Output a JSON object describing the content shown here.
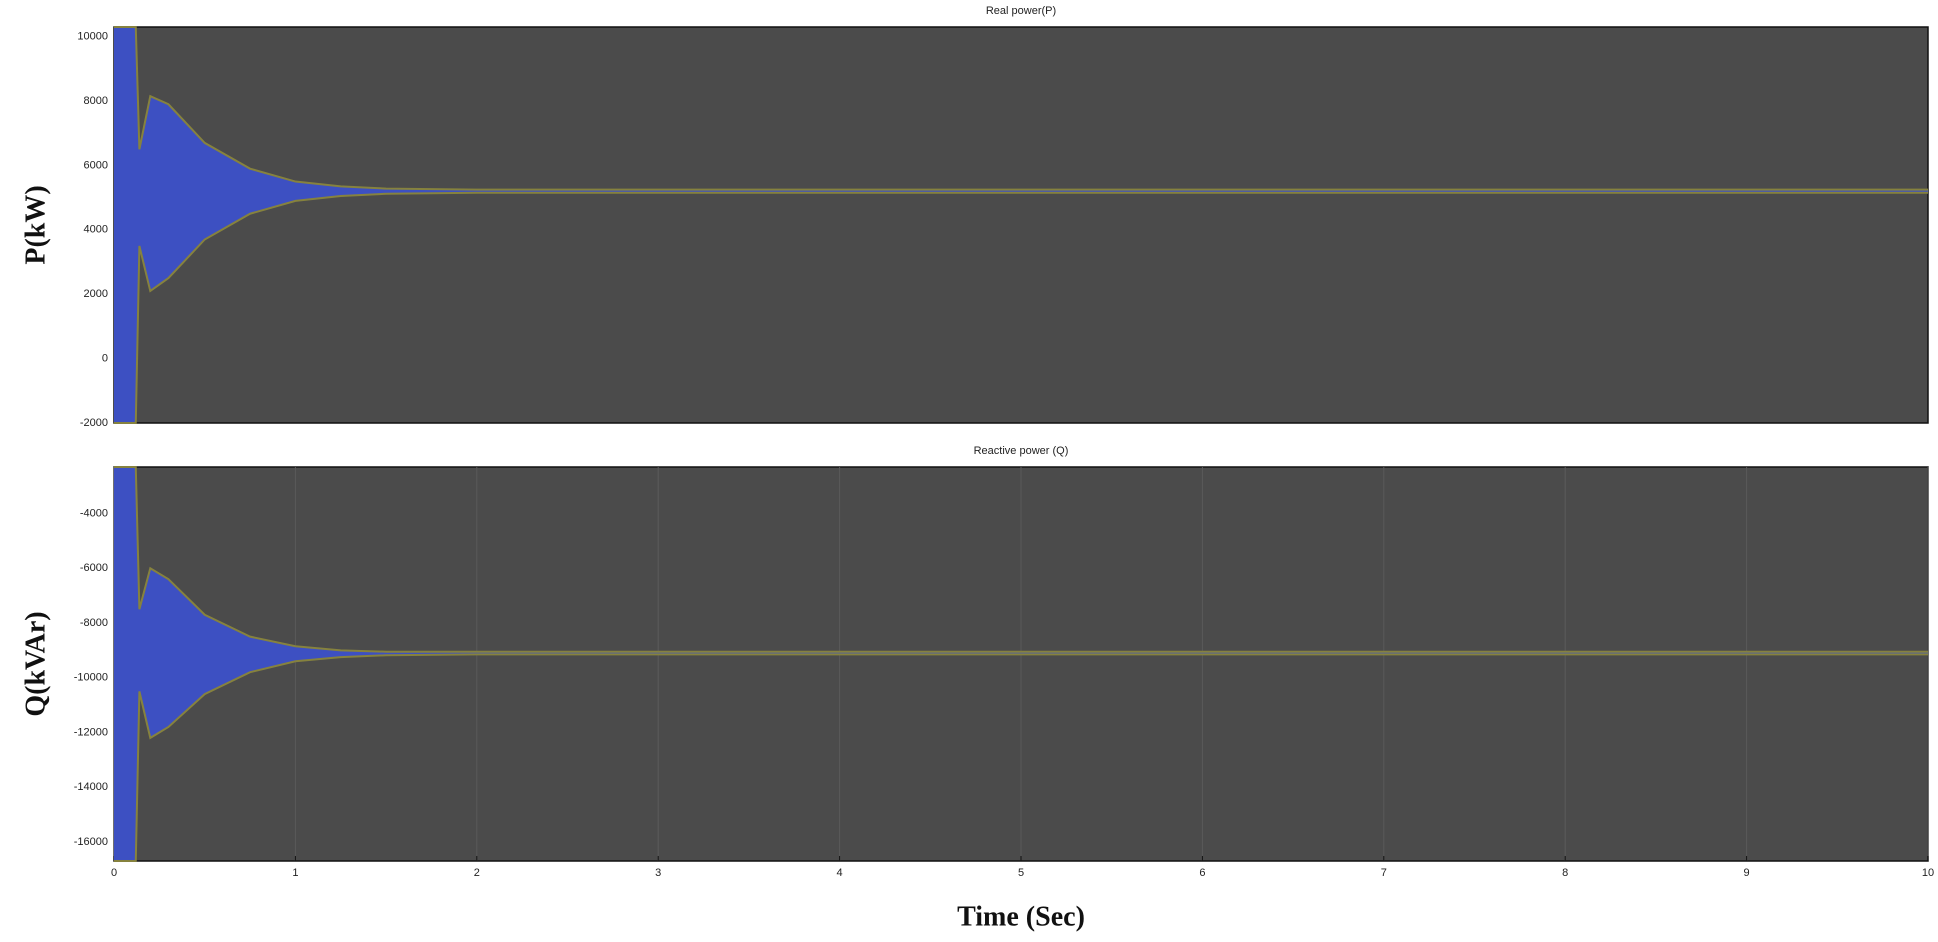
{
  "chart_data": [
    {
      "type": "band",
      "title": "Real power(P)",
      "ylabel": "P(kW)",
      "x": [
        0,
        0.12,
        0.14,
        0.2,
        0.3,
        0.5,
        0.75,
        1.0,
        1.25,
        1.5,
        2,
        10
      ],
      "series": [
        {
          "color": "#86823e",
          "values": [
            10300,
            10300,
            6500,
            8150,
            7900,
            6700,
            5900,
            5500,
            5350,
            5280,
            5250,
            5250
          ]
        },
        {
          "color": "#86823e",
          "values": [
            -2000,
            -2000,
            3500,
            2100,
            2500,
            3700,
            4500,
            4900,
            5050,
            5120,
            5150,
            5150
          ]
        }
      ],
      "fill": "#3d50c2",
      "background": "#4b4b4b",
      "xlim": [
        0,
        10
      ],
      "ylim": [
        -2000,
        10300
      ],
      "yticks": [
        -2000,
        0,
        2000,
        4000,
        6000,
        8000,
        10000
      ]
    },
    {
      "type": "band",
      "title": "Reactive power (Q)",
      "ylabel": "Q(kVAr)",
      "xlabel": "Time (Sec)",
      "x": [
        0,
        0.12,
        0.14,
        0.2,
        0.3,
        0.5,
        0.75,
        1.0,
        1.25,
        1.5,
        2,
        10
      ],
      "series": [
        {
          "color": "#86823e",
          "values": [
            -2300,
            -2300,
            -7500,
            -6000,
            -6400,
            -7700,
            -8500,
            -8850,
            -9000,
            -9050,
            -9050,
            -9050
          ]
        },
        {
          "color": "#86823e",
          "values": [
            -16700,
            -16700,
            -10500,
            -12200,
            -11800,
            -10600,
            -9800,
            -9400,
            -9250,
            -9180,
            -9150,
            -9150
          ]
        }
      ],
      "fill": "#3d50c2",
      "background": "#4b4b4b",
      "xlim": [
        0,
        10
      ],
      "ylim": [
        -16700,
        -2300
      ],
      "xticks": [
        0,
        1,
        2,
        3,
        4,
        5,
        6,
        7,
        8,
        9,
        10
      ],
      "yticks": [
        -16000,
        -14000,
        -12000,
        -10000,
        -8000,
        -6000,
        -4000
      ],
      "grid": true
    }
  ]
}
